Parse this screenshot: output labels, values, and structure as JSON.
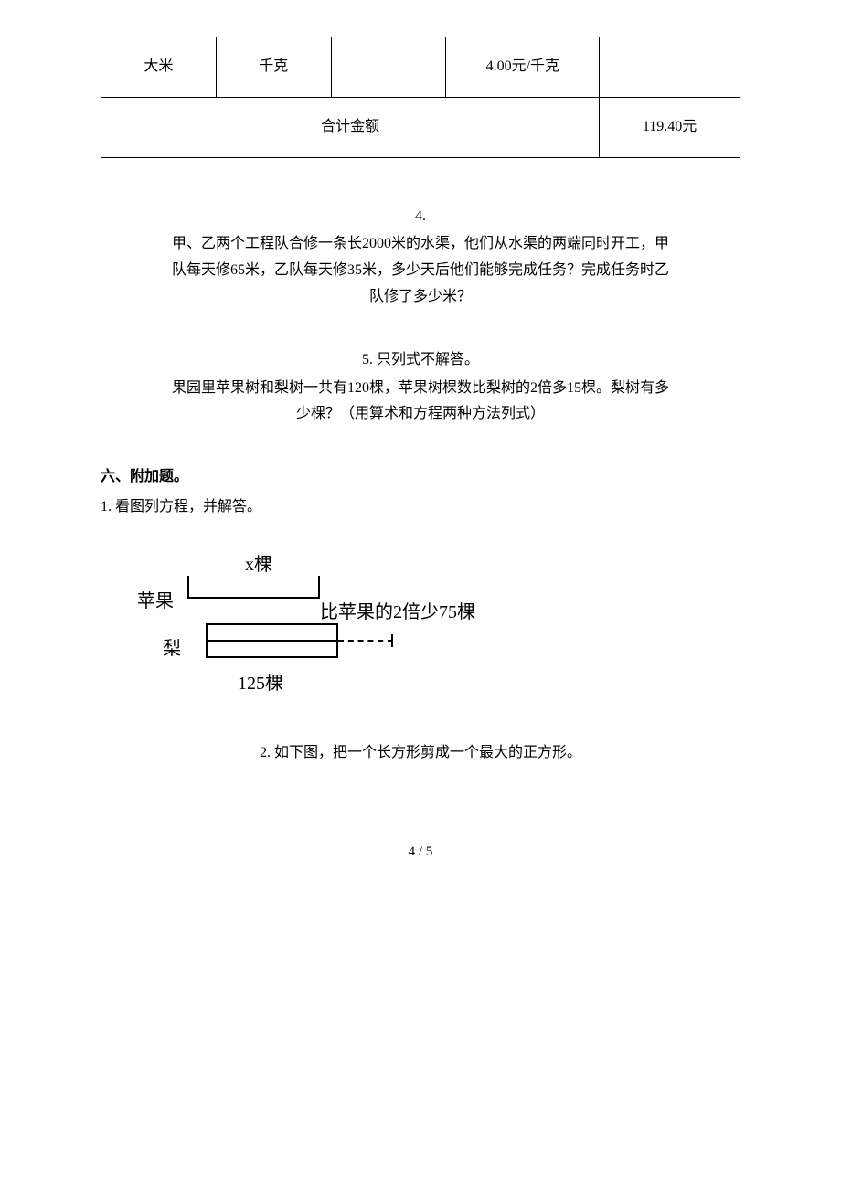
{
  "table": {
    "row1": {
      "c1": "大米",
      "c2": "千克",
      "c3": "",
      "c4": "4.00元/千克",
      "c5": ""
    },
    "row2": {
      "merged_label": "合计金额",
      "total": "119.40元"
    }
  },
  "problem4": {
    "num": "4.",
    "line1": "甲、乙两个工程队合修一条长2000米的水渠，他们从水渠的两端同时开工，甲",
    "line2": "队每天修65米，乙队每天修35米，多少天后他们能够完成任务？完成任务时乙",
    "line3": "队修了多少米？"
  },
  "problem5": {
    "num": "5. 只列式不解答。",
    "line1": "果园里苹果树和梨树一共有120棵，苹果树棵数比梨树的2倍多15棵。梨树有多",
    "line2": "少棵？（用算术和方程两种方法列式）"
  },
  "section6": {
    "title": "六、附加题。",
    "item1": "1. 看图列方程，并解答。",
    "item2": "2. 如下图，把一个长方形剪成一个最大的正方形。"
  },
  "diagram": {
    "x_label": "x棵",
    "apple_label": "苹果",
    "note": "比苹果的2倍少75棵",
    "pear_label": "梨",
    "bottom_label": "125棵"
  },
  "page": "4 / 5"
}
